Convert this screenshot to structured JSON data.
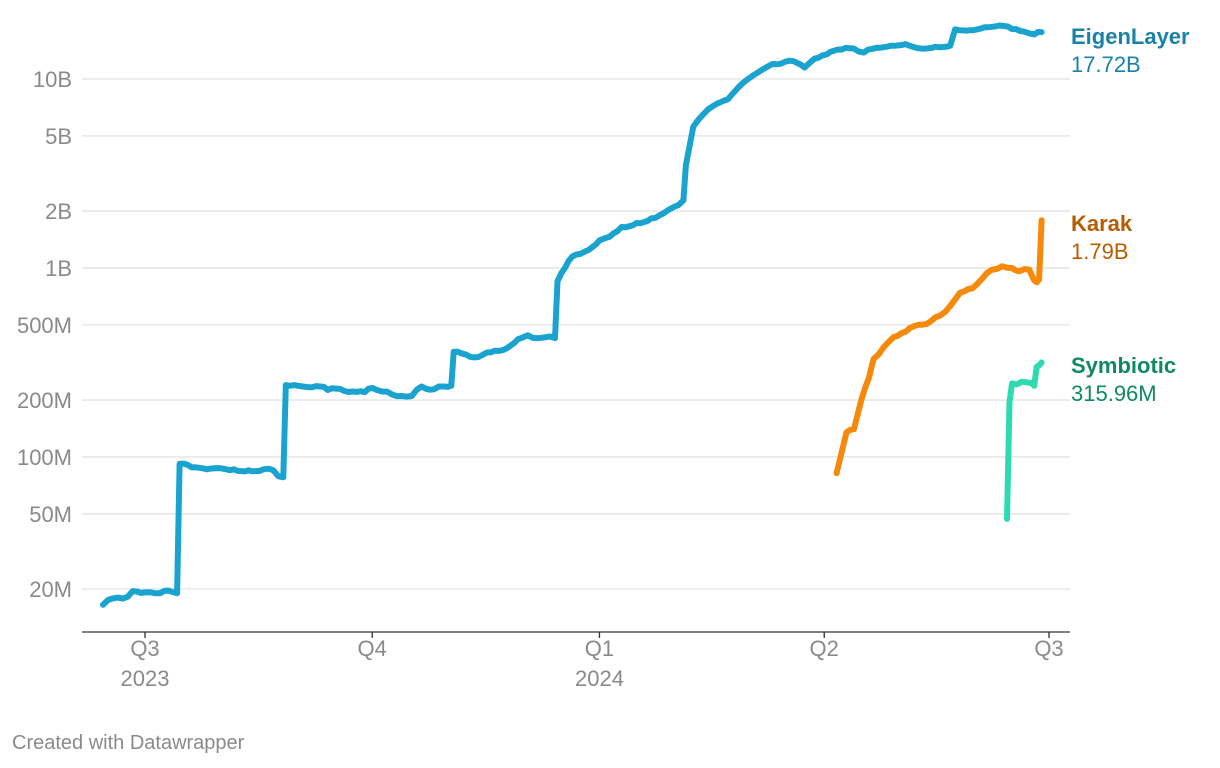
{
  "chart_data": {
    "type": "line",
    "title": "",
    "xlabel": "",
    "ylabel": "",
    "y_scale": "log",
    "ylim": [
      15000000,
      25000000000
    ],
    "xlim": [
      "2023-06-20",
      "2024-07-02"
    ],
    "grid": true,
    "legend": "direct labels at line ends",
    "y_ticks": [
      {
        "value": 20000000,
        "label": "20M"
      },
      {
        "value": 50000000,
        "label": "50M"
      },
      {
        "value": 100000000,
        "label": "100M"
      },
      {
        "value": 200000000,
        "label": "200M"
      },
      {
        "value": 500000000,
        "label": "500M"
      },
      {
        "value": 1000000000,
        "label": "1B"
      },
      {
        "value": 2000000000,
        "label": "2B"
      },
      {
        "value": 5000000000,
        "label": "5B"
      },
      {
        "value": 10000000000,
        "label": "10B"
      }
    ],
    "x_ticks": [
      {
        "date": "2023-07-01",
        "label": "Q3",
        "sublabel": "2023"
      },
      {
        "date": "2023-10-01",
        "label": "Q4",
        "sublabel": ""
      },
      {
        "date": "2024-01-01",
        "label": "Q1",
        "sublabel": "2024"
      },
      {
        "date": "2024-04-01",
        "label": "Q2",
        "sublabel": ""
      },
      {
        "date": "2024-07-01",
        "label": "Q3",
        "sublabel": ""
      }
    ],
    "series": [
      {
        "name": "EigenLayer",
        "end_label": "17.72B",
        "color": "#1ba3d0",
        "label_color": "#1a82a8",
        "points": [
          [
            "2023-06-14",
            16500000
          ],
          [
            "2023-06-16",
            17500000
          ],
          [
            "2023-06-20",
            18000000
          ],
          [
            "2023-06-24",
            18200000
          ],
          [
            "2023-06-26",
            19500000
          ],
          [
            "2023-07-01",
            19200000
          ],
          [
            "2023-07-05",
            19000000
          ],
          [
            "2023-07-09",
            19600000
          ],
          [
            "2023-07-12",
            19300000
          ],
          [
            "2023-07-14",
            19000000
          ],
          [
            "2023-07-15",
            92000000
          ],
          [
            "2023-07-20",
            88000000
          ],
          [
            "2023-07-26",
            86000000
          ],
          [
            "2023-08-01",
            87000000
          ],
          [
            "2023-08-06",
            86000000
          ],
          [
            "2023-08-12",
            85000000
          ],
          [
            "2023-08-18",
            86000000
          ],
          [
            "2023-08-22",
            85000000
          ],
          [
            "2023-08-24",
            79000000
          ],
          [
            "2023-08-26",
            78000000
          ],
          [
            "2023-08-27",
            240000000
          ],
          [
            "2023-09-01",
            238000000
          ],
          [
            "2023-09-05",
            234000000
          ],
          [
            "2023-09-10",
            236000000
          ],
          [
            "2023-09-13",
            226000000
          ],
          [
            "2023-09-18",
            229000000
          ],
          [
            "2023-09-23",
            222000000
          ],
          [
            "2023-09-28",
            220000000
          ],
          [
            "2023-10-01",
            232000000
          ],
          [
            "2023-10-05",
            222000000
          ],
          [
            "2023-10-09",
            214000000
          ],
          [
            "2023-10-13",
            210000000
          ],
          [
            "2023-10-17",
            210000000
          ],
          [
            "2023-10-21",
            236000000
          ],
          [
            "2023-10-26",
            228000000
          ],
          [
            "2023-10-30",
            236000000
          ],
          [
            "2023-11-02",
            238000000
          ],
          [
            "2023-11-03",
            360000000
          ],
          [
            "2023-11-08",
            348000000
          ],
          [
            "2023-11-13",
            338000000
          ],
          [
            "2023-11-18",
            358000000
          ],
          [
            "2023-11-23",
            368000000
          ],
          [
            "2023-11-29",
            420000000
          ],
          [
            "2023-12-03",
            440000000
          ],
          [
            "2023-12-07",
            425000000
          ],
          [
            "2023-12-10",
            430000000
          ],
          [
            "2023-12-14",
            425000000
          ],
          [
            "2023-12-15",
            850000000
          ],
          [
            "2023-12-18",
            1000000000
          ],
          [
            "2023-12-21",
            1150000000
          ],
          [
            "2023-12-26",
            1220000000
          ],
          [
            "2024-01-01",
            1400000000
          ],
          [
            "2024-01-05",
            1460000000
          ],
          [
            "2024-01-10",
            1650000000
          ],
          [
            "2024-01-16",
            1730000000
          ],
          [
            "2024-01-22",
            1830000000
          ],
          [
            "2024-01-27",
            1950000000
          ],
          [
            "2024-02-02",
            2150000000
          ],
          [
            "2024-02-04",
            2280000000
          ],
          [
            "2024-02-05",
            3500000000
          ],
          [
            "2024-02-08",
            5600000000
          ],
          [
            "2024-02-12",
            6500000000
          ],
          [
            "2024-02-16",
            7200000000
          ],
          [
            "2024-02-22",
            7800000000
          ],
          [
            "2024-02-28",
            9500000000
          ],
          [
            "2024-03-05",
            10800000000
          ],
          [
            "2024-03-11",
            12000000000
          ],
          [
            "2024-03-18",
            12500000000
          ],
          [
            "2024-03-24",
            11500000000
          ],
          [
            "2024-03-28",
            12800000000
          ],
          [
            "2024-04-02",
            13500000000
          ],
          [
            "2024-04-08",
            14300000000
          ],
          [
            "2024-04-13",
            14500000000
          ],
          [
            "2024-04-17",
            13800000000
          ],
          [
            "2024-04-22",
            14600000000
          ],
          [
            "2024-04-28",
            15000000000
          ],
          [
            "2024-05-04",
            15300000000
          ],
          [
            "2024-05-10",
            14500000000
          ],
          [
            "2024-05-16",
            14800000000
          ],
          [
            "2024-05-22",
            15000000000
          ],
          [
            "2024-05-24",
            18300000000
          ],
          [
            "2024-05-30",
            18100000000
          ],
          [
            "2024-06-05",
            18800000000
          ],
          [
            "2024-06-11",
            19200000000
          ],
          [
            "2024-06-16",
            18400000000
          ],
          [
            "2024-06-21",
            17800000000
          ],
          [
            "2024-06-25",
            17200000000
          ],
          [
            "2024-06-28",
            17720000000
          ]
        ]
      },
      {
        "name": "Karak",
        "end_label": "1.79B",
        "color": "#f7890a",
        "label_color": "#b85c00",
        "points": [
          [
            "2024-04-06",
            82000000
          ],
          [
            "2024-04-08",
            105000000
          ],
          [
            "2024-04-10",
            135000000
          ],
          [
            "2024-04-13",
            140000000
          ],
          [
            "2024-04-16",
            200000000
          ],
          [
            "2024-04-19",
            260000000
          ],
          [
            "2024-04-21",
            330000000
          ],
          [
            "2024-04-25",
            380000000
          ],
          [
            "2024-04-29",
            430000000
          ],
          [
            "2024-05-04",
            460000000
          ],
          [
            "2024-05-09",
            500000000
          ],
          [
            "2024-05-14",
            520000000
          ],
          [
            "2024-05-18",
            560000000
          ],
          [
            "2024-05-22",
            630000000
          ],
          [
            "2024-05-26",
            740000000
          ],
          [
            "2024-05-31",
            780000000
          ],
          [
            "2024-06-04",
            880000000
          ],
          [
            "2024-06-08",
            980000000
          ],
          [
            "2024-06-12",
            1020000000
          ],
          [
            "2024-06-16",
            1000000000
          ],
          [
            "2024-06-19",
            960000000
          ],
          [
            "2024-06-23",
            980000000
          ],
          [
            "2024-06-25",
            860000000
          ],
          [
            "2024-06-26",
            840000000
          ],
          [
            "2024-06-27",
            870000000
          ],
          [
            "2024-06-28",
            1790000000
          ]
        ]
      },
      {
        "name": "Symbiotic",
        "end_label": "315.96M",
        "color": "#2edbb0",
        "label_color": "#0f8a5e",
        "points": [
          [
            "2024-06-14",
            47000000
          ],
          [
            "2024-06-15",
            195000000
          ],
          [
            "2024-06-16",
            245000000
          ],
          [
            "2024-06-18",
            242000000
          ],
          [
            "2024-06-20",
            250000000
          ],
          [
            "2024-06-22",
            248000000
          ],
          [
            "2024-06-24",
            246000000
          ],
          [
            "2024-06-25",
            238000000
          ],
          [
            "2024-06-26",
            300000000
          ],
          [
            "2024-06-27",
            305000000
          ],
          [
            "2024-06-28",
            315960000
          ]
        ]
      }
    ]
  },
  "footer": {
    "credit": "Created with Datawrapper"
  }
}
